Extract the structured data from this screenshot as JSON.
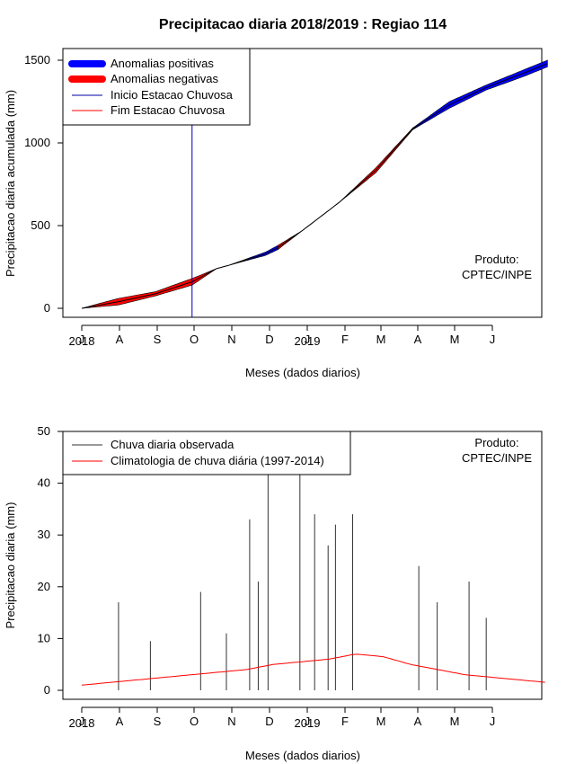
{
  "chart_data": [
    {
      "type": "area",
      "title": "Precipitacao diaria 2018/2019 : Regiao 114",
      "xlabel": "Meses (dados diarios)",
      "ylabel": "Precipitacao diaria acumulada (mm)",
      "ylim": [
        0,
        1500
      ],
      "yticks": [
        0,
        500,
        1000,
        1500
      ],
      "x_months": [
        "J",
        "A",
        "S",
        "O",
        "N",
        "D",
        "J",
        "F",
        "M",
        "A",
        "M",
        "J"
      ],
      "x_years": [
        "2018",
        "2019"
      ],
      "grid": false,
      "legend_position": "top-left",
      "legend": [
        "Anomalias positivas",
        "Anomalias negativas",
        "Inicio Estacao Chuvosa",
        "Fim Estacao Chuvosa"
      ],
      "colors": {
        "positive": "#0000ff",
        "negative": "#ff0000",
        "inicio": "#0000aa",
        "fim": "#ff0000",
        "line": "#000000"
      },
      "inicio_estacao_chuvosa_day": 90,
      "series": [
        {
          "name": "Anomalias positivas",
          "x": [
            0,
            30,
            60,
            90,
            110,
            120,
            150,
            160,
            180,
            210,
            240,
            270,
            300,
            330,
            360,
            380
          ],
          "values": [
            0,
            60,
            100,
            180,
            240,
            260,
            340,
            380,
            470,
            640,
            850,
            1090,
            1250,
            1350,
            1440,
            1500
          ]
        },
        {
          "name": "Anomalias negativas",
          "x": [
            0,
            30,
            60,
            90,
            110,
            120,
            150,
            160,
            180,
            210,
            240,
            270,
            300,
            330,
            360,
            380
          ],
          "values": [
            0,
            20,
            75,
            140,
            240,
            260,
            320,
            355,
            470,
            640,
            820,
            1080,
            1210,
            1320,
            1400,
            1460
          ]
        }
      ],
      "watermark": "Produto:\nCPTEC/INPE"
    },
    {
      "type": "bar",
      "title": "",
      "xlabel": "Meses (dados diarios)",
      "ylabel": "Precipitacao diaria (mm)",
      "ylim": [
        0,
        50
      ],
      "yticks": [
        0,
        10,
        20,
        30,
        40,
        50
      ],
      "x_months": [
        "J",
        "A",
        "S",
        "O",
        "N",
        "D",
        "J",
        "F",
        "M",
        "A",
        "M",
        "J"
      ],
      "x_years": [
        "2018",
        "2019"
      ],
      "grid": false,
      "legend_position": "top-left",
      "legend": [
        "Chuva diaria observada",
        "Climatologia de chuva diária (1997-2014)"
      ],
      "colors": {
        "observed": "#000000",
        "climatology": "#ff0000"
      },
      "observed_peaks": [
        {
          "day": 30,
          "value": 17
        },
        {
          "day": 56,
          "value": 9.5
        },
        {
          "day": 97,
          "value": 19
        },
        {
          "day": 118,
          "value": 11
        },
        {
          "day": 137,
          "value": 33
        },
        {
          "day": 144,
          "value": 21
        },
        {
          "day": 152,
          "value": 50
        },
        {
          "day": 178,
          "value": 50
        },
        {
          "day": 190,
          "value": 34
        },
        {
          "day": 201,
          "value": 28
        },
        {
          "day": 207,
          "value": 32
        },
        {
          "day": 221,
          "value": 34
        },
        {
          "day": 275,
          "value": 24
        },
        {
          "day": 290,
          "value": 17
        },
        {
          "day": 316,
          "value": 21
        },
        {
          "day": 330,
          "value": 14
        }
      ],
      "climatology": [
        1,
        1.5,
        2,
        2.5,
        3,
        3.5,
        4,
        5,
        5.5,
        6,
        7,
        6.5,
        5,
        4,
        3,
        2.5,
        2,
        1.5
      ],
      "watermark": "Produto:\nCPTEC/INPE"
    }
  ]
}
